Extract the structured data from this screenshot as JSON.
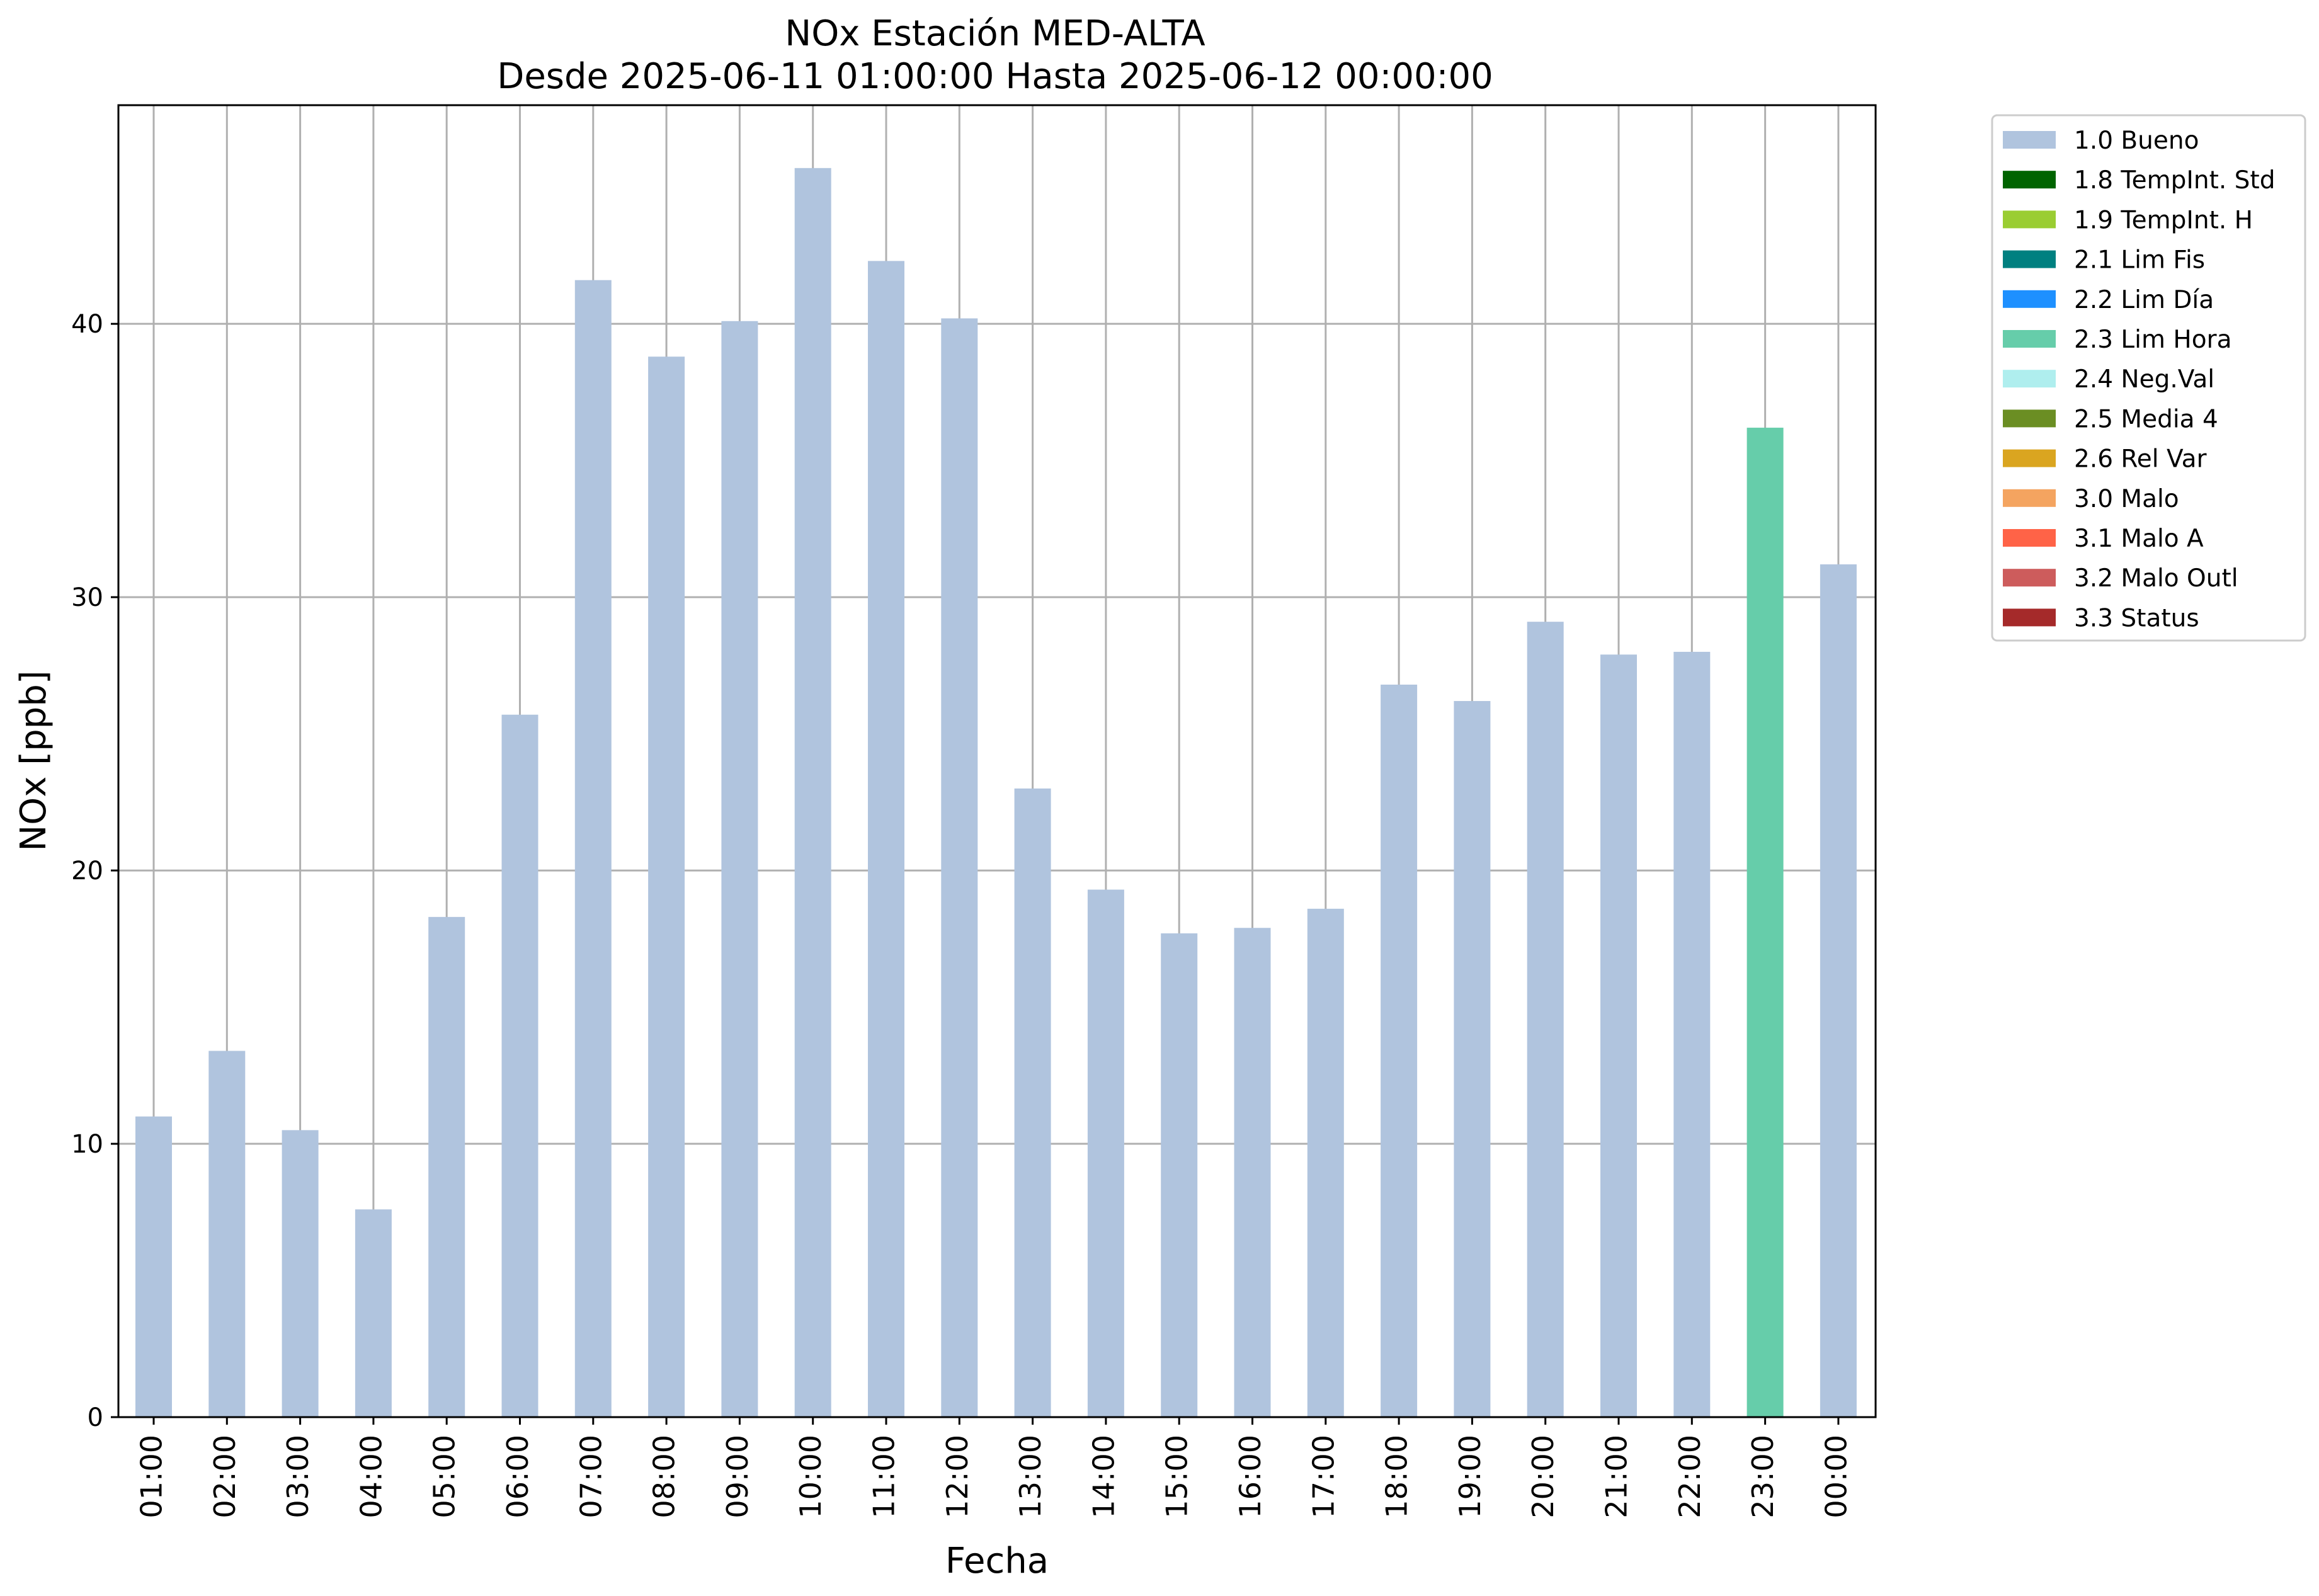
{
  "chart_data": {
    "type": "bar",
    "title": "NOx Estación MED-ALTA",
    "subtitle": "Desde 2025-06-11 01:00:00 Hasta 2025-06-12 00:00:00",
    "xlabel": "Fecha",
    "ylabel": "NOx [ppb]",
    "ylim": [
      0,
      48
    ],
    "yticks": [
      0,
      10,
      20,
      30,
      40
    ],
    "grid": true,
    "legend_position": "outside-top-right",
    "categories": [
      "01:00",
      "02:00",
      "03:00",
      "04:00",
      "05:00",
      "06:00",
      "07:00",
      "08:00",
      "09:00",
      "10:00",
      "11:00",
      "12:00",
      "13:00",
      "14:00",
      "15:00",
      "16:00",
      "17:00",
      "18:00",
      "19:00",
      "20:00",
      "21:00",
      "22:00",
      "23:00",
      "00:00"
    ],
    "values": [
      11.0,
      13.4,
      10.5,
      7.6,
      18.3,
      25.7,
      41.6,
      38.8,
      40.1,
      45.7,
      42.3,
      40.2,
      23.0,
      19.3,
      17.7,
      17.9,
      18.6,
      26.8,
      26.2,
      29.1,
      27.9,
      28.0,
      36.2,
      31.2
    ],
    "flags": [
      "1.0 Bueno",
      "1.0 Bueno",
      "1.0 Bueno",
      "1.0 Bueno",
      "1.0 Bueno",
      "1.0 Bueno",
      "1.0 Bueno",
      "1.0 Bueno",
      "1.0 Bueno",
      "1.0 Bueno",
      "1.0 Bueno",
      "1.0 Bueno",
      "1.0 Bueno",
      "1.0 Bueno",
      "1.0 Bueno",
      "1.0 Bueno",
      "1.0 Bueno",
      "1.0 Bueno",
      "1.0 Bueno",
      "1.0 Bueno",
      "1.0 Bueno",
      "1.0 Bueno",
      "2.3 Lim Hora",
      "1.0 Bueno"
    ],
    "legend": [
      {
        "label": "1.0 Bueno",
        "color": "#b0c4de"
      },
      {
        "label": "1.8 TempInt. Std",
        "color": "#006400"
      },
      {
        "label": "1.9 TempInt. H",
        "color": "#9acd32"
      },
      {
        "label": "2.1 Lim Fis",
        "color": "#008080"
      },
      {
        "label": "2.2 Lim Día",
        "color": "#1e90ff"
      },
      {
        "label": "2.3 Lim Hora",
        "color": "#66cdaa"
      },
      {
        "label": "2.4 Neg.Val",
        "color": "#afeeee"
      },
      {
        "label": "2.5 Media 4",
        "color": "#6b8e23"
      },
      {
        "label": "2.6 Rel Var",
        "color": "#daa520"
      },
      {
        "label": "3.0 Malo",
        "color": "#f4a460"
      },
      {
        "label": "3.1 Malo A",
        "color": "#ff6347"
      },
      {
        "label": "3.2 Malo Outl",
        "color": "#cd5c5c"
      },
      {
        "label": "3.3 Status",
        "color": "#a52a2a"
      }
    ]
  }
}
